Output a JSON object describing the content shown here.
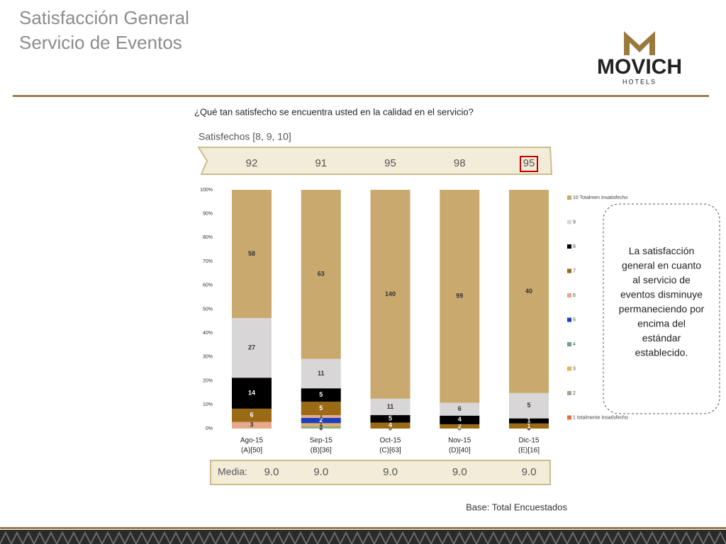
{
  "header": {
    "title_line1": "Satisfacción General",
    "title_line2": "Servicio de Eventos",
    "logo_name": "MOVICH",
    "logo_sub": "HOTELS"
  },
  "question": "¿Qué tan satisfecho se encuentra usted en la calidad en el servicio?",
  "satisfied": {
    "label": "Satisfechos [8, 9, 10]",
    "values": [
      92,
      91,
      95,
      98,
      95
    ]
  },
  "media": {
    "label": "Media:",
    "values": [
      9,
      9,
      9,
      9,
      9
    ],
    "value_labels": [
      "9.0",
      "9.0",
      "9.0",
      "9.0",
      "9.0"
    ]
  },
  "base_note": "Base: Total Encuestados",
  "callout": "La satisfacción general en cuanto al servicio de eventos disminuye permaneciendo por encima del estándar establecido.",
  "chart_data": {
    "type": "stacked_bar_100",
    "categories": [
      "Ago-15",
      "Sep-15",
      "Oct-15",
      "Nov-15",
      "Dic-15"
    ],
    "subcategories": [
      "(A)[50]",
      "(B)[36]",
      "(C)[63]",
      "(D)[40]",
      "(E)[16]"
    ],
    "ylim": [
      0,
      100
    ],
    "yticks": [
      {
        "value": 0,
        "label": "0%"
      },
      {
        "value": 10,
        "label": "10%"
      },
      {
        "value": 20,
        "label": "20%"
      },
      {
        "value": 30,
        "label": "30%"
      },
      {
        "value": 40,
        "label": "40%"
      },
      {
        "value": 50,
        "label": "50%"
      },
      {
        "value": 60,
        "label": "60%"
      },
      {
        "value": 70,
        "label": "70%"
      },
      {
        "value": 80,
        "label": "80%"
      },
      {
        "value": 90,
        "label": "90%"
      },
      {
        "value": 100,
        "label": "100%"
      }
    ],
    "series": [
      {
        "name": "1 totalmente Insatisfecho",
        "color": "#e07040",
        "values": [
          null,
          0,
          0,
          0,
          0
        ]
      },
      {
        "name": "2",
        "color": "#9aaa8a",
        "values": [
          null,
          1,
          null,
          null,
          null
        ]
      },
      {
        "name": "3",
        "color": "#e8b060",
        "values": [
          null,
          1,
          null,
          null,
          0
        ]
      },
      {
        "name": "4",
        "color": "#6f9e9a",
        "values": [
          null,
          null,
          null,
          null,
          null
        ]
      },
      {
        "name": "5",
        "color": "#1a3fbf",
        "values": [
          null,
          2,
          null,
          null,
          null
        ]
      },
      {
        "name": "6",
        "color": "#e6a98c",
        "values": [
          3,
          1,
          null,
          null,
          null
        ]
      },
      {
        "name": "7",
        "color": "#9a6a14",
        "values": [
          6,
          5,
          4,
          2,
          1
        ]
      },
      {
        "name": "8",
        "color": "#000000",
        "values": [
          14,
          5,
          5,
          4,
          1
        ]
      },
      {
        "name": "9",
        "color": "#d9d6d7",
        "values": [
          27,
          11,
          11,
          6,
          5
        ]
      },
      {
        "name": "10 Totalmen Insatisfecho",
        "color": "#c9a96e",
        "values": [
          58,
          63,
          140,
          99,
          40
        ]
      }
    ]
  }
}
